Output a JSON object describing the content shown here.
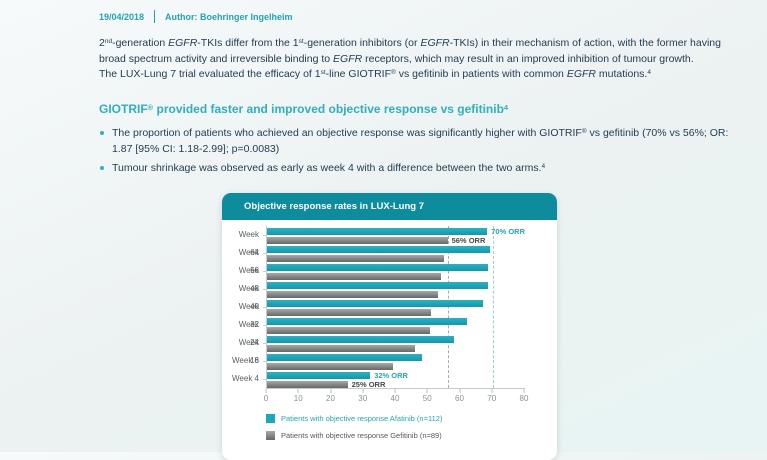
{
  "meta": {
    "date": "19/04/2018",
    "author_label": "Author: Boehringer Ingelheim"
  },
  "intro": {
    "para1_rich": [
      {
        "t": "2"
      },
      {
        "t": "nd",
        "sup": true
      },
      {
        "t": "-generation "
      },
      {
        "t": "EGFR",
        "i": true
      },
      {
        "t": "-TKIs differ from the 1"
      },
      {
        "t": "st",
        "sup": true
      },
      {
        "t": "-generation inhibitors (or "
      },
      {
        "t": "EGFR",
        "i": true
      },
      {
        "t": "-TKIs) in their mechanism of action, with the former having broad spectrum activity and irreversible binding to "
      },
      {
        "t": "EGFR",
        "i": true
      },
      {
        "t": " receptors, which may result in an improved inhibition of tumour growth."
      }
    ],
    "para2_rich": [
      {
        "t": "The LUX-Lung 7 trial evaluated the efficacy of 1"
      },
      {
        "t": "st",
        "sup": true
      },
      {
        "t": "-line GIOTRIF"
      },
      {
        "t": "®",
        "sup": true
      },
      {
        "t": " vs gefitinib in patients with common "
      },
      {
        "t": "EGFR",
        "i": true
      },
      {
        "t": " mutations."
      },
      {
        "t": "4",
        "sup": true
      }
    ]
  },
  "section": {
    "heading_rich": [
      {
        "t": "GIOTRIF"
      },
      {
        "t": "®",
        "sup": true
      },
      {
        "t": " provided faster and improved objective response vs gefitinib"
      },
      {
        "t": "4",
        "sup": true
      }
    ]
  },
  "bullets": [
    {
      "rich": [
        {
          "t": "The proportion of patients who achieved an objective response was significantly higher with GIOTRIF"
        },
        {
          "t": "®",
          "sup": true
        },
        {
          "t": " vs gefitinib (70% vs 56%; OR: 1.87 [95% CI: 1.18-2.99]; p=0.0083)"
        }
      ]
    },
    {
      "rich": [
        {
          "t": "Tumour shrinkage was observed as early as week 4 with a difference between the two arms."
        },
        {
          "t": "4",
          "sup": true
        }
      ]
    }
  ],
  "chart_data": {
    "type": "bar",
    "orientation": "horizontal",
    "title": "Objective response rates in LUX-Lung 7",
    "categories": [
      "Week 64",
      "Week 56",
      "Week 48",
      "Week 40",
      "Week 32",
      "Week 24",
      "Week 16",
      "Week 8",
      "Week 4"
    ],
    "series": [
      {
        "name": "Patients with objective response Afatinib (n=112)",
        "color": "#1CA7BA",
        "values": [
          70,
          69,
          68.5,
          68.5,
          67,
          62,
          58,
          48,
          32
        ]
      },
      {
        "name": "Patients with objective response Gefitinib (n=89)",
        "color": "#808285",
        "values": [
          56,
          55,
          54,
          53,
          51,
          50.5,
          46,
          39,
          25
        ]
      }
    ],
    "xlim": [
      0,
      80
    ],
    "x_ticks": [
      0,
      10,
      20,
      30,
      40,
      50,
      60,
      70,
      80
    ],
    "annotations": [
      {
        "category_index": 0,
        "series_index": 0,
        "text": "70% ORR"
      },
      {
        "category_index": 0,
        "series_index": 1,
        "text": "56% ORR"
      },
      {
        "category_index": 8,
        "series_index": 0,
        "text": "32% ORR"
      },
      {
        "category_index": 8,
        "series_index": 1,
        "text": "25% ORR"
      }
    ],
    "reference_lines": [
      {
        "value": 70,
        "color": "#90D5DE"
      },
      {
        "value": 56,
        "color": "#A6ABAD"
      }
    ],
    "grid": false,
    "legend_position": "bottom"
  },
  "colors": {
    "accent_teal": "#2FAFC0",
    "meta_teal": "#2B9FB0",
    "chart_header_bg": "#0E8C9E",
    "body_text": "#1F3B50",
    "afatinib_bar": "#1CA7BA",
    "gefitinib_bar": "#808285"
  }
}
